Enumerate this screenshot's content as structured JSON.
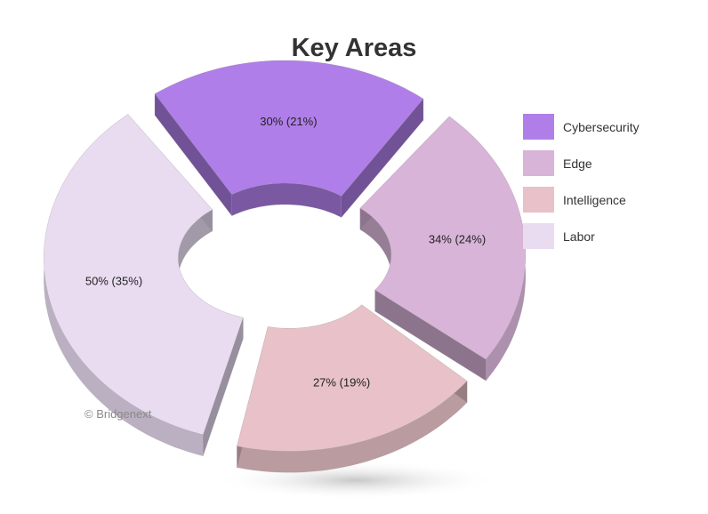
{
  "title": "Key Areas",
  "credit": "© Bridgenext",
  "chart_data": {
    "type": "pie",
    "variant": "3d-donut-exploded",
    "title": "Key Areas",
    "categories": [
      "Cybersecurity",
      "Edge",
      "Intelligence",
      "Labor"
    ],
    "values": [
      30,
      34,
      27,
      50
    ],
    "shares_percent": [
      21,
      24,
      19,
      35
    ],
    "data_labels": [
      "30% (21%)",
      "34% (24%)",
      "27% (19%)",
      "50% (35%)"
    ],
    "colors": [
      "#b07ee8",
      "#d8b4d8",
      "#e8c2c8",
      "#e9dcf1"
    ],
    "legend": {
      "position": "right",
      "entries": [
        "Cybersecurity",
        "Edge",
        "Intelligence",
        "Labor"
      ]
    }
  }
}
